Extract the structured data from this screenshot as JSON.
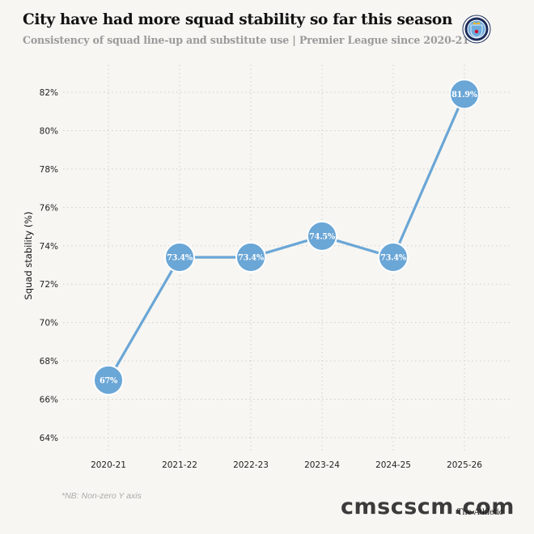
{
  "header": {
    "title": "City have had more squad stability so far this season",
    "subtitle": "Consistency of squad line-up and substitute use | Premier League since 2020-21",
    "logo": "manchester-city-crest"
  },
  "footer": {
    "footnote": "*NB: Non-zero Y axis",
    "watermark": "cmscscm.com",
    "brand": "The Athletic"
  },
  "colors": {
    "line": "#6aa6d6",
    "marker": "#6aa6d6",
    "marker_outline": "#ffffff",
    "grid": "#cfcfcf",
    "background": "#f7f6f2"
  },
  "chart_data": {
    "type": "line",
    "title": "City have had more squad stability so far this season",
    "subtitle": "Consistency of squad line-up and substitute use | Premier League since 2020-21",
    "xlabel": "",
    "ylabel": "Squad stability (%)",
    "categories": [
      "2020-21",
      "2021-22",
      "2022-23",
      "2023-24",
      "2024-25",
      "2025-26"
    ],
    "series": [
      {
        "name": "Manchester City",
        "values": [
          67.0,
          73.4,
          73.4,
          74.5,
          73.4,
          81.9
        ],
        "labels": [
          "67%",
          "73.4%",
          "73.4%",
          "74.5%",
          "73.4%",
          "81.9%"
        ]
      }
    ],
    "ylim": [
      64,
      82
    ],
    "yticks": [
      64,
      66,
      68,
      70,
      72,
      74,
      76,
      78,
      80,
      82
    ],
    "ytick_labels": [
      "64%",
      "66%",
      "68%",
      "70%",
      "72%",
      "74%",
      "76%",
      "78%",
      "80%",
      "82%"
    ],
    "grid": true,
    "grid_style": "dotted",
    "legend": "none",
    "annotations": [
      "*NB: Non-zero Y axis"
    ]
  }
}
